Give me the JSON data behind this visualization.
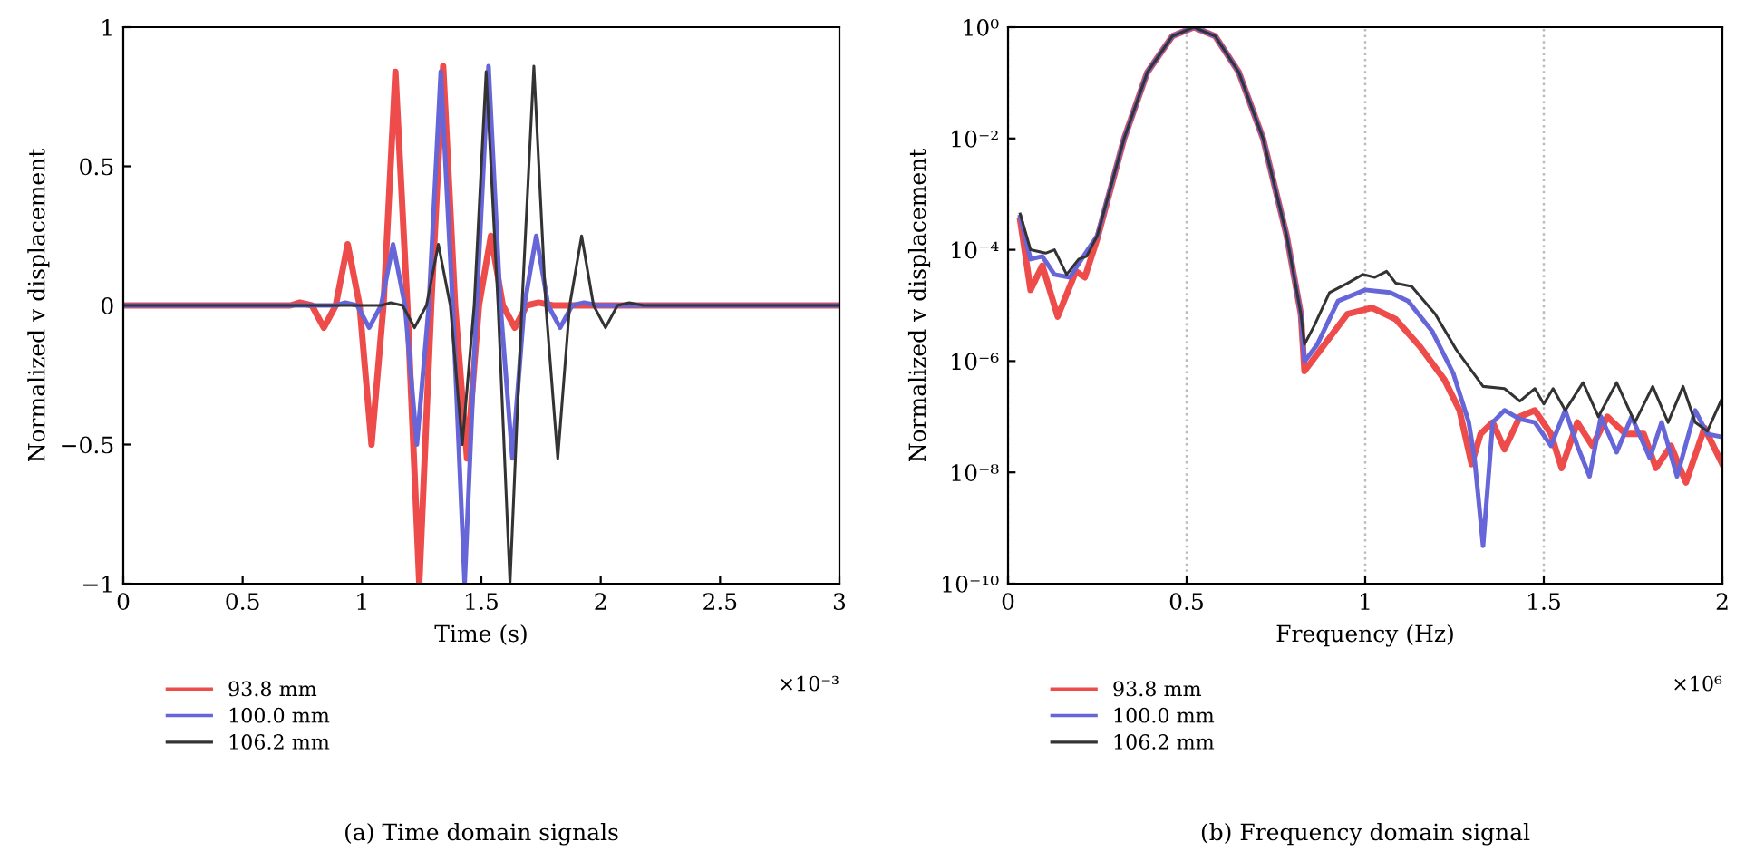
{
  "chart_data": [
    {
      "type": "line",
      "title": "(a) Time domain signals",
      "xlabel": "Time (s)",
      "ylabel": "Normalized v displacement",
      "annotations": [
        "×10⁻³"
      ],
      "xlim": [
        0,
        3
      ],
      "xticks": [
        0,
        0.5,
        1,
        1.5,
        2,
        2.5,
        3
      ],
      "ylim": [
        -1,
        1
      ],
      "yticks": [
        {
          "value": -1,
          "label": "−1"
        },
        {
          "value": -0.5,
          "label": "−0.5"
        },
        0,
        0.5,
        1
      ],
      "grid": false,
      "legend": "bottom left",
      "marker": "none",
      "line_style": "solid",
      "series": [
        {
          "name": "93.8 mm",
          "color": "#ee4b4b",
          "x": [
            0,
            0.7,
            0.74,
            0.79,
            0.84,
            0.89,
            0.94,
            0.99,
            1.04,
            1.09,
            1.14,
            1.19,
            1.24,
            1.29,
            1.34,
            1.39,
            1.44,
            1.49,
            1.54,
            1.59,
            1.64,
            1.69,
            1.74,
            1.8,
            3
          ],
          "values": [
            0,
            0,
            0.01,
            0,
            -0.08,
            0,
            0.22,
            0,
            -0.5,
            0,
            0.84,
            0,
            -1,
            0,
            0.86,
            0,
            -0.55,
            0,
            0.25,
            0,
            -0.08,
            0,
            0.01,
            0,
            0
          ]
        },
        {
          "name": "100.0 mm",
          "color": "#6666d8",
          "x": [
            0,
            0.89,
            0.93,
            0.98,
            1.03,
            1.08,
            1.13,
            1.18,
            1.23,
            1.28,
            1.33,
            1.38,
            1.43,
            1.48,
            1.53,
            1.58,
            1.63,
            1.68,
            1.73,
            1.78,
            1.83,
            1.88,
            1.93,
            1.99,
            3
          ],
          "values": [
            0,
            0,
            0.01,
            0,
            -0.08,
            0,
            0.22,
            0,
            -0.5,
            0,
            0.84,
            0,
            -1,
            0,
            0.86,
            0,
            -0.55,
            0,
            0.25,
            0,
            -0.08,
            0,
            0.01,
            0,
            0
          ]
        },
        {
          "name": "106.2 mm",
          "color": "#333333",
          "x": [
            0,
            1.08,
            1.12,
            1.17,
            1.22,
            1.27,
            1.32,
            1.37,
            1.42,
            1.47,
            1.52,
            1.57,
            1.62,
            1.67,
            1.72,
            1.77,
            1.82,
            1.87,
            1.92,
            1.97,
            2.02,
            2.07,
            2.12,
            2.18,
            3
          ],
          "values": [
            0,
            0,
            0.01,
            0,
            -0.08,
            0,
            0.22,
            0,
            -0.5,
            0,
            0.84,
            0,
            -1,
            0,
            0.86,
            0,
            -0.55,
            0,
            0.25,
            0,
            -0.08,
            0,
            0.01,
            0,
            0
          ]
        }
      ]
    },
    {
      "type": "line",
      "title": "(b) Frequency domain signal",
      "xlabel": "Frequency (Hz)",
      "ylabel": "Normalized v displacement",
      "annotations": [
        "×10⁶"
      ],
      "log": "y",
      "xlim": [
        0,
        2
      ],
      "xticks": [
        0,
        0.5,
        1,
        1.5,
        2
      ],
      "ylim": [
        1e-10,
        1
      ],
      "yticks": [
        {
          "value": 1e-10,
          "label": "10⁻¹⁰"
        },
        {
          "value": 1e-08,
          "label": "10⁻⁸"
        },
        {
          "value": 1e-06,
          "label": "10⁻⁶"
        },
        {
          "value": 0.0001,
          "label": "10⁻⁴"
        },
        {
          "value": 0.01,
          "label": "10⁻²"
        },
        {
          "value": 1,
          "label": "10⁰"
        }
      ],
      "grid": "x",
      "legend": "bottom left",
      "marker": "none",
      "line_style": "solid",
      "series": [
        {
          "name": "93.8 mm",
          "color": "#ee4b4b",
          "x": [
            0.034,
            0.063,
            0.096,
            0.139,
            0.19,
            0.215,
            0.25,
            0.325,
            0.39,
            0.46,
            0.52,
            0.58,
            0.646,
            0.714,
            0.78,
            0.82,
            0.83,
            0.875,
            0.95,
            1.019,
            1.086,
            1.154,
            1.222,
            1.264,
            1.298,
            1.323,
            1.357,
            1.39,
            1.433,
            1.475,
            1.52,
            1.55,
            1.594,
            1.636,
            1.678,
            1.729,
            1.78,
            1.814,
            1.856,
            1.898,
            1.95,
            2.0
          ],
          "values": [
            0.00034,
            1.9e-05,
            5.2e-05,
            6.3e-06,
            4.1e-05,
            3.2e-05,
            0.00016,
            0.01,
            0.155,
            0.69,
            1,
            0.69,
            0.155,
            0.01,
            0.00018,
            7e-06,
            6.6e-07,
            1.6e-06,
            7e-06,
            9.1e-06,
            5.6e-06,
            1.8e-06,
            4.6e-07,
            1.3e-07,
            1.4e-08,
            4.9e-08,
            7.9e-08,
            2.6e-08,
            1e-07,
            1.3e-07,
            4.9e-08,
            1.2e-08,
            7.9e-08,
            3e-08,
            1e-07,
            4.9e-08,
            4.9e-08,
            1.2e-08,
            3e-08,
            6.6e-09,
            6.3e-08,
            1.4e-08
          ]
        },
        {
          "name": "100.0 mm",
          "color": "#6666d8",
          "x": [
            0.034,
            0.063,
            0.096,
            0.13,
            0.173,
            0.206,
            0.25,
            0.325,
            0.39,
            0.46,
            0.52,
            0.58,
            0.646,
            0.714,
            0.78,
            0.82,
            0.83,
            0.866,
            0.924,
            1.0,
            1.07,
            1.12,
            1.188,
            1.247,
            1.29,
            1.306,
            1.33,
            1.357,
            1.39,
            1.433,
            1.475,
            1.52,
            1.56,
            1.594,
            1.628,
            1.66,
            1.704,
            1.746,
            1.797,
            1.83,
            1.873,
            1.924,
            1.958,
            2.0
          ],
          "values": [
            0.00039,
            6.8e-05,
            7.6e-05,
            3.6e-05,
            3.2e-05,
            6.8e-05,
            0.00018,
            0.01,
            0.155,
            0.69,
            1,
            0.69,
            0.155,
            0.01,
            0.00018,
            7e-06,
            9.8e-07,
            2e-06,
            1.2e-05,
            1.9e-05,
            1.7e-05,
            1.2e-05,
            3.4e-06,
            5.9e-07,
            7.9e-08,
            1.8e-08,
            4.8e-10,
            7.9e-08,
            1.3e-07,
            9.1e-08,
            7.9e-08,
            3e-08,
            1.3e-07,
            3e-08,
            8.5e-09,
            1e-07,
            2.3e-08,
            1e-07,
            1.8e-08,
            7.9e-08,
            8.5e-09,
            1.3e-07,
            4.9e-08,
            4.3e-08
          ]
        },
        {
          "name": "106.2 mm",
          "color": "#333333",
          "x": [
            0.034,
            0.063,
            0.105,
            0.13,
            0.164,
            0.198,
            0.22,
            0.25,
            0.325,
            0.39,
            0.46,
            0.52,
            0.58,
            0.646,
            0.714,
            0.78,
            0.82,
            0.83,
            0.858,
            0.9,
            0.95,
            0.993,
            1.027,
            1.06,
            1.086,
            1.13,
            1.196,
            1.255,
            1.33,
            1.39,
            1.433,
            1.475,
            1.5,
            1.526,
            1.56,
            1.61,
            1.653,
            1.704,
            1.755,
            1.805,
            1.848,
            1.89,
            1.924,
            1.958,
            2.0
          ],
          "values": [
            0.00044,
            0.0001,
            8.7e-05,
            0.0001,
            3.6e-05,
            6.8e-05,
            7.6e-05,
            0.00018,
            0.01,
            0.155,
            0.69,
            1,
            0.69,
            0.155,
            0.01,
            0.00018,
            7e-06,
            2e-06,
            4.4e-06,
            1.7e-05,
            2.5e-05,
            3.6e-05,
            3.2e-05,
            4.1e-05,
            2.5e-05,
            2.2e-05,
            7e-06,
            1.6e-06,
            3.5e-07,
            3.2e-07,
            1.9e-07,
            3.2e-07,
            1.7e-07,
            3.2e-07,
            1.3e-07,
            4.1e-07,
            1e-07,
            4.1e-07,
            7.9e-08,
            3.5e-07,
            7.9e-08,
            3.5e-07,
            7.9e-08,
            5.5e-08,
            2.2e-07
          ]
        }
      ]
    }
  ]
}
